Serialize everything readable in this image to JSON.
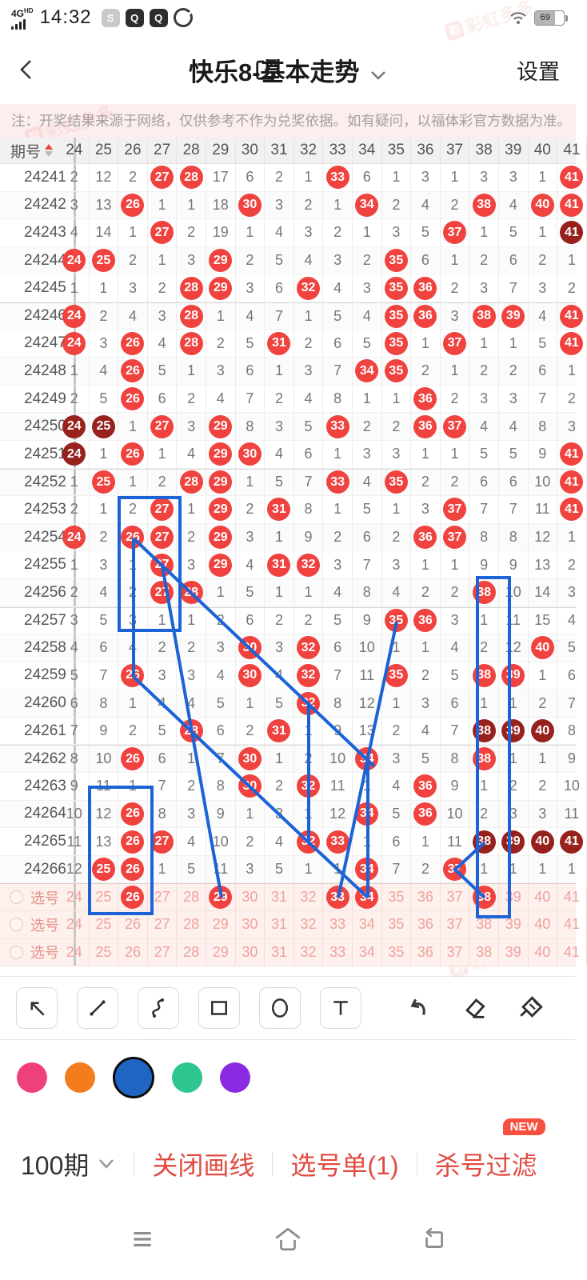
{
  "status_bar": {
    "network": "4G",
    "network_badge": "HD",
    "time": "14:32",
    "battery": "69"
  },
  "header": {
    "title": "快乐8-基本走势",
    "settings_label": "设置"
  },
  "notice": "注：开奖结果来源于网络，仅供参考不作为兑奖依据。如有疑问，以福体彩官方数据为准。",
  "watermark": "彩虹多多",
  "table": {
    "issue_header": "期号",
    "columns": [
      "24",
      "25",
      "26",
      "27",
      "28",
      "29",
      "30",
      "31",
      "32",
      "33",
      "34",
      "35",
      "36",
      "37",
      "38",
      "39",
      "40",
      "41"
    ],
    "group_breaks": [
      "24246",
      "24252",
      "24257",
      "24262"
    ],
    "rows": [
      {
        "issue": "24241",
        "cells": [
          "2",
          "12",
          "2",
          "*",
          "*",
          "17",
          "6",
          "2",
          "1",
          "*",
          "6",
          "1",
          "3",
          "1",
          "3",
          "3",
          "1",
          "*"
        ]
      },
      {
        "issue": "24242",
        "cells": [
          "3",
          "13",
          "*",
          "1",
          "1",
          "18",
          "*",
          "3",
          "2",
          "1",
          "*",
          "2",
          "4",
          "2",
          "*",
          "4",
          "*",
          "*"
        ]
      },
      {
        "issue": "24243",
        "cells": [
          "4",
          "14",
          "1",
          "*",
          "2",
          "19",
          "1",
          "4",
          "3",
          "2",
          "1",
          "3",
          "5",
          "*",
          "1",
          "5",
          "1",
          "#"
        ]
      },
      {
        "issue": "24244",
        "cells": [
          "*",
          "*",
          "2",
          "1",
          "3",
          "*",
          "2",
          "5",
          "4",
          "3",
          "2",
          "*",
          "6",
          "1",
          "2",
          "6",
          "2",
          "1"
        ]
      },
      {
        "issue": "24245",
        "cells": [
          "1",
          "1",
          "3",
          "2",
          "*",
          "*",
          "3",
          "6",
          "*",
          "4",
          "3",
          "*",
          "*",
          "2",
          "3",
          "7",
          "3",
          "2"
        ]
      },
      {
        "issue": "24246",
        "cells": [
          "*",
          "2",
          "4",
          "3",
          "*",
          "1",
          "4",
          "7",
          "1",
          "5",
          "4",
          "*",
          "*",
          "3",
          "*",
          "*",
          "4",
          "*"
        ]
      },
      {
        "issue": "24247",
        "cells": [
          "*",
          "3",
          "*",
          "4",
          "*",
          "2",
          "5",
          "*",
          "2",
          "6",
          "5",
          "*",
          "1",
          "*",
          "1",
          "1",
          "5",
          "*"
        ]
      },
      {
        "issue": "24248",
        "cells": [
          "1",
          "4",
          "*",
          "5",
          "1",
          "3",
          "6",
          "1",
          "3",
          "7",
          "*",
          "*",
          "2",
          "1",
          "2",
          "2",
          "6",
          "1"
        ]
      },
      {
        "issue": "24249",
        "cells": [
          "2",
          "5",
          "*",
          "6",
          "2",
          "4",
          "7",
          "2",
          "4",
          "8",
          "1",
          "1",
          "*",
          "2",
          "3",
          "3",
          "7",
          "2"
        ]
      },
      {
        "issue": "24250",
        "cells": [
          "#",
          "#",
          "1",
          "*",
          "3",
          "*",
          "8",
          "3",
          "5",
          "*",
          "2",
          "2",
          "*",
          "*",
          "4",
          "4",
          "8",
          "3"
        ]
      },
      {
        "issue": "24251",
        "cells": [
          "#",
          "1",
          "*",
          "1",
          "4",
          "*",
          "*",
          "4",
          "6",
          "1",
          "3",
          "3",
          "1",
          "1",
          "5",
          "5",
          "9",
          "*"
        ]
      },
      {
        "issue": "24252",
        "cells": [
          "1",
          "*",
          "1",
          "2",
          "*",
          "*",
          "1",
          "5",
          "7",
          "*",
          "4",
          "*",
          "2",
          "2",
          "6",
          "6",
          "10",
          "*"
        ]
      },
      {
        "issue": "24253",
        "cells": [
          "2",
          "1",
          "2",
          "*",
          "1",
          "*",
          "2",
          "*",
          "8",
          "1",
          "5",
          "1",
          "3",
          "*",
          "7",
          "7",
          "11",
          "*"
        ]
      },
      {
        "issue": "24254",
        "cells": [
          "*",
          "2",
          "*",
          "*",
          "2",
          "*",
          "3",
          "1",
          "9",
          "2",
          "6",
          "2",
          "*",
          "*",
          "8",
          "8",
          "12",
          "1"
        ]
      },
      {
        "issue": "24255",
        "cells": [
          "1",
          "3",
          "1",
          "*",
          "3",
          "*",
          "4",
          "*",
          "*",
          "3",
          "7",
          "3",
          "1",
          "1",
          "9",
          "9",
          "13",
          "2"
        ]
      },
      {
        "issue": "24256",
        "cells": [
          "2",
          "4",
          "2",
          "*",
          "*",
          "1",
          "5",
          "1",
          "1",
          "4",
          "8",
          "4",
          "2",
          "2",
          "*",
          "10",
          "14",
          "3"
        ]
      },
      {
        "issue": "24257",
        "cells": [
          "3",
          "5",
          "3",
          "1",
          "1",
          "2",
          "6",
          "2",
          "2",
          "5",
          "9",
          "*",
          "*",
          "3",
          "1",
          "11",
          "15",
          "4"
        ]
      },
      {
        "issue": "24258",
        "cells": [
          "4",
          "6",
          "4",
          "2",
          "2",
          "3",
          "*",
          "3",
          "*",
          "6",
          "10",
          "1",
          "1",
          "4",
          "2",
          "12",
          "*",
          "5"
        ]
      },
      {
        "issue": "24259",
        "cells": [
          "5",
          "7",
          "*",
          "3",
          "3",
          "4",
          "*",
          "4",
          "*",
          "7",
          "11",
          "*",
          "2",
          "5",
          "*",
          "*",
          "1",
          "6"
        ]
      },
      {
        "issue": "24260",
        "cells": [
          "6",
          "8",
          "1",
          "4",
          "4",
          "5",
          "1",
          "5",
          "*",
          "8",
          "12",
          "1",
          "3",
          "6",
          "1",
          "1",
          "2",
          "7"
        ]
      },
      {
        "issue": "24261",
        "cells": [
          "7",
          "9",
          "2",
          "5",
          "*",
          "6",
          "2",
          "*",
          "1",
          "9",
          "13",
          "2",
          "4",
          "7",
          "#",
          "#",
          "#",
          "8"
        ]
      },
      {
        "issue": "24262",
        "cells": [
          "8",
          "10",
          "*",
          "6",
          "1",
          "7",
          "*",
          "1",
          "2",
          "10",
          "*",
          "3",
          "5",
          "8",
          "*",
          "1",
          "1",
          "9"
        ]
      },
      {
        "issue": "24263",
        "cells": [
          "9",
          "11",
          "1",
          "7",
          "2",
          "8",
          "*",
          "2",
          "*",
          "11",
          "1",
          "4",
          "*",
          "9",
          "1",
          "2",
          "2",
          "10"
        ]
      },
      {
        "issue": "24264",
        "cells": [
          "10",
          "12",
          "*",
          "8",
          "3",
          "9",
          "1",
          "3",
          "1",
          "12",
          "*",
          "5",
          "*",
          "10",
          "2",
          "3",
          "3",
          "11"
        ]
      },
      {
        "issue": "24265",
        "cells": [
          "11",
          "13",
          "*",
          "*",
          "4",
          "10",
          "2",
          "4",
          "*",
          "*",
          "1",
          "6",
          "1",
          "11",
          "#",
          "#",
          "#",
          "#"
        ]
      },
      {
        "issue": "24266",
        "cells": [
          "12",
          "*",
          "*",
          "1",
          "5",
          "11",
          "3",
          "5",
          "1",
          "1",
          "*",
          "7",
          "2",
          "*",
          "1",
          "1",
          "1",
          "1"
        ]
      }
    ],
    "pick_rows": [
      {
        "label": "选号",
        "cells": [
          "24",
          "25",
          "*",
          "27",
          "28",
          "*",
          "30",
          "31",
          "32",
          "*",
          "*",
          "35",
          "36",
          "37",
          "*",
          "39",
          "40",
          "41"
        ]
      },
      {
        "label": "选号",
        "cells": [
          "24",
          "25",
          "26",
          "27",
          "28",
          "29",
          "30",
          "31",
          "32",
          "33",
          "34",
          "35",
          "36",
          "37",
          "38",
          "39",
          "40",
          "41"
        ]
      },
      {
        "label": "选号",
        "cells": [
          "24",
          "25",
          "26",
          "27",
          "28",
          "29",
          "30",
          "31",
          "32",
          "33",
          "34",
          "35",
          "36",
          "37",
          "38",
          "39",
          "40",
          "41"
        ]
      }
    ]
  },
  "annotations": {
    "color": "#1b63d6",
    "rects": [
      [
        149,
        622,
        76,
        166
      ],
      [
        112,
        984,
        78,
        158
      ],
      [
        597,
        722,
        40,
        424
      ]
    ],
    "lines": [
      [
        167,
        673,
        468,
        958
      ],
      [
        167,
        673,
        167,
        846
      ],
      [
        167,
        846,
        313,
        984
      ],
      [
        313,
        984,
        386,
        1053
      ],
      [
        386,
        880,
        386,
        1053
      ],
      [
        386,
        1053,
        460,
        1122
      ],
      [
        203,
        708,
        277,
        1122
      ],
      [
        496,
        777,
        423,
        1122
      ],
      [
        460,
        949,
        460,
        1122
      ]
    ],
    "polylines": [
      [
        606,
        1053,
        569,
        1087,
        606,
        1122
      ]
    ]
  },
  "palette": {
    "colors": [
      {
        "name": "pink",
        "hex": "#f0407c",
        "selected": false
      },
      {
        "name": "orange",
        "hex": "#f37d1d",
        "selected": false
      },
      {
        "name": "blue",
        "hex": "#1f66c4",
        "selected": true
      },
      {
        "name": "green",
        "hex": "#2cc68e",
        "selected": false
      },
      {
        "name": "purple",
        "hex": "#8a2be2",
        "selected": false
      }
    ]
  },
  "footer": {
    "period": "100期",
    "close_draw": "关闭画线",
    "pick_list": "选号单(1)",
    "kill_filter": "杀号过滤",
    "new_badge": "NEW"
  }
}
